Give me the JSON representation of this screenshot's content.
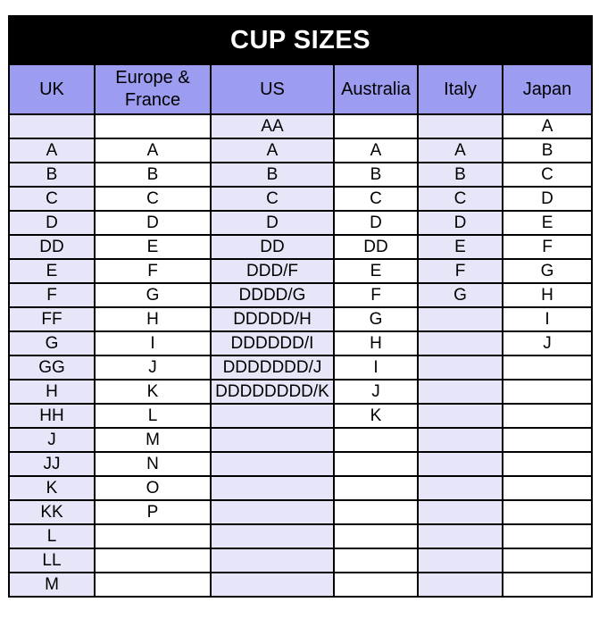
{
  "title": "CUP SIZES",
  "colors": {
    "title_bg": "#000000",
    "title_fg": "#ffffff",
    "header_bg": "#9c9cf0",
    "tint_bg": "#e6e6f8",
    "border": "#000000"
  },
  "chart_data": {
    "type": "table",
    "title": "CUP SIZES",
    "columns": [
      "UK",
      "Europe & France",
      "US",
      "Australia",
      "Italy",
      "Japan"
    ],
    "tinted_columns": [
      0,
      2,
      4
    ],
    "rows": [
      [
        "",
        "",
        "AA",
        "",
        "",
        "A"
      ],
      [
        "A",
        "A",
        "A",
        "A",
        "A",
        "B"
      ],
      [
        "B",
        "B",
        "B",
        "B",
        "B",
        "C"
      ],
      [
        "C",
        "C",
        "C",
        "C",
        "C",
        "D"
      ],
      [
        "D",
        "D",
        "D",
        "D",
        "D",
        "E"
      ],
      [
        "DD",
        "E",
        "DD",
        "DD",
        "E",
        "F"
      ],
      [
        "E",
        "F",
        "DDD/F",
        "E",
        "F",
        "G"
      ],
      [
        "F",
        "G",
        "DDDD/G",
        "F",
        "G",
        "H"
      ],
      [
        "FF",
        "H",
        "DDDDD/H",
        "G",
        "",
        "I"
      ],
      [
        "G",
        "I",
        "DDDDDD/I",
        "H",
        "",
        "J"
      ],
      [
        "GG",
        "J",
        "DDDDDDD/J",
        "I",
        "",
        ""
      ],
      [
        "H",
        "K",
        "DDDDDDDD/K",
        "J",
        "",
        ""
      ],
      [
        "HH",
        "L",
        "",
        "K",
        "",
        ""
      ],
      [
        "J",
        "M",
        "",
        "",
        "",
        ""
      ],
      [
        "JJ",
        "N",
        "",
        "",
        "",
        ""
      ],
      [
        "K",
        "O",
        "",
        "",
        "",
        ""
      ],
      [
        "KK",
        "P",
        "",
        "",
        "",
        ""
      ],
      [
        "L",
        "",
        "",
        "",
        "",
        ""
      ],
      [
        "LL",
        "",
        "",
        "",
        "",
        ""
      ],
      [
        "M",
        "",
        "",
        "",
        "",
        ""
      ]
    ]
  }
}
